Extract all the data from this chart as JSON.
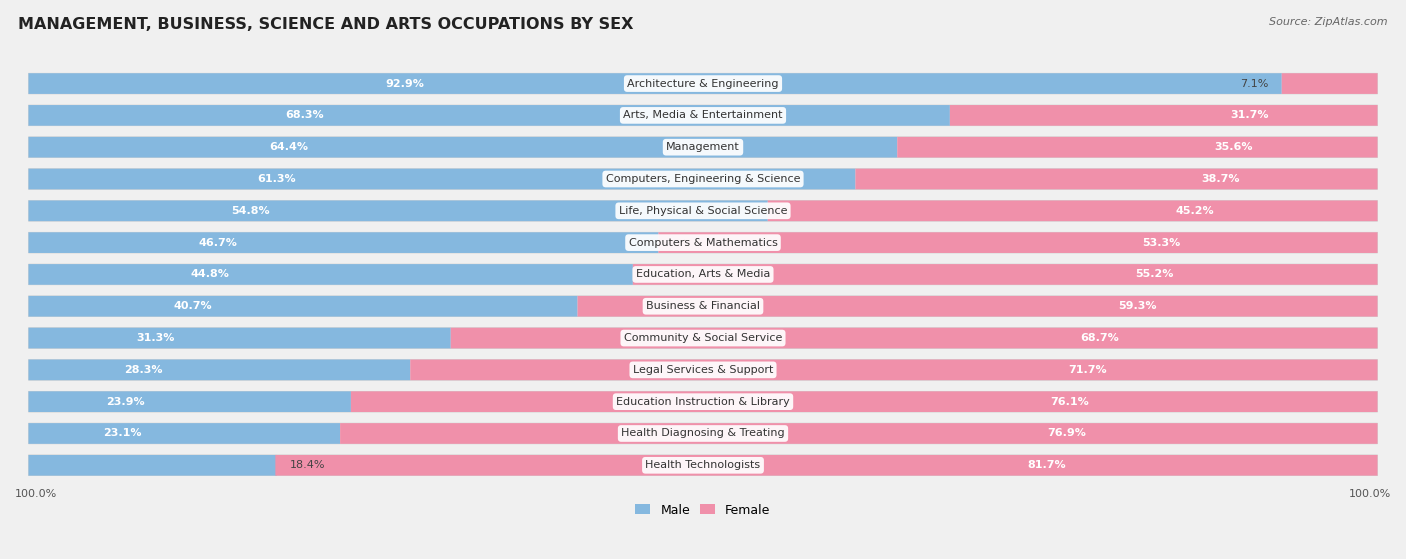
{
  "title": "MANAGEMENT, BUSINESS, SCIENCE AND ARTS OCCUPATIONS BY SEX",
  "source": "Source: ZipAtlas.com",
  "categories": [
    "Architecture & Engineering",
    "Arts, Media & Entertainment",
    "Management",
    "Computers, Engineering & Science",
    "Life, Physical & Social Science",
    "Computers & Mathematics",
    "Education, Arts & Media",
    "Business & Financial",
    "Community & Social Service",
    "Legal Services & Support",
    "Education Instruction & Library",
    "Health Diagnosing & Treating",
    "Health Technologists"
  ],
  "male_pct": [
    92.9,
    68.3,
    64.4,
    61.3,
    54.8,
    46.7,
    44.8,
    40.7,
    31.3,
    28.3,
    23.9,
    23.1,
    18.4
  ],
  "female_pct": [
    7.1,
    31.7,
    35.6,
    38.7,
    45.2,
    53.3,
    55.2,
    59.3,
    68.7,
    71.7,
    76.1,
    76.9,
    81.7
  ],
  "male_color": "#85b8df",
  "female_color": "#f090aa",
  "bg_color": "#f0f0f0",
  "row_bg_color": "#e4e8ee",
  "title_fontsize": 11.5,
  "label_fontsize": 8.0,
  "pct_fontsize": 8.0,
  "legend_fontsize": 9,
  "source_fontsize": 8
}
